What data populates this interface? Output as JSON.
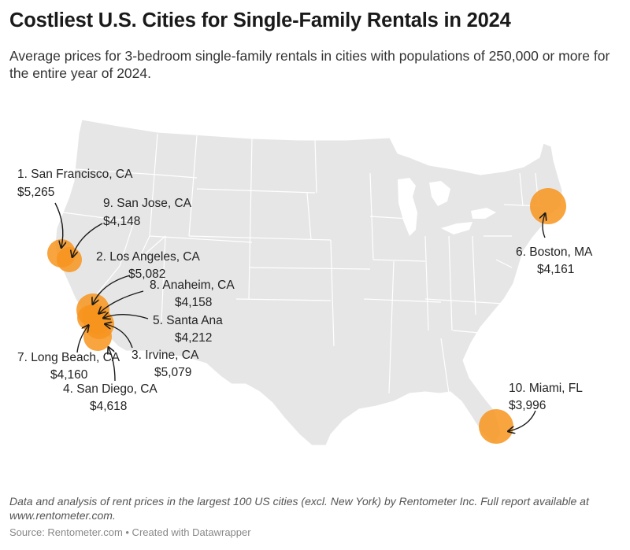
{
  "header": {
    "title": "Costliest U.S. Cities for Single-Family Rentals in 2024",
    "subtitle": "Average prices for 3-bedroom single-family rentals in cities with populations of 250,000 or more for the entire year of 2024."
  },
  "map": {
    "region": "Contiguous United States",
    "marker_color": "#f7941d",
    "land_color": "#e6e6e6",
    "border_color": "#ffffff",
    "cities": [
      {
        "rank": 1,
        "label": "1. San Francisco, CA",
        "price": "$5,265"
      },
      {
        "rank": 2,
        "label": "2. Los Angeles, CA",
        "price": "$5,082"
      },
      {
        "rank": 3,
        "label": "3. Irvine, CA",
        "price": "$5,079"
      },
      {
        "rank": 4,
        "label": "4. San Diego, CA",
        "price": "$4,618"
      },
      {
        "rank": 5,
        "label": "5. Santa Ana",
        "price": "$4,212"
      },
      {
        "rank": 6,
        "label": "6. Boston, MA",
        "price": "$4,161"
      },
      {
        "rank": 7,
        "label": "7. Long Beach, CA",
        "price": "$4,160"
      },
      {
        "rank": 8,
        "label": "8. Anaheim, CA",
        "price": "$4,158"
      },
      {
        "rank": 9,
        "label": "9. San Jose, CA",
        "price": "$4,148"
      },
      {
        "rank": 10,
        "label": "10. Miami, FL",
        "price": "$3,996"
      }
    ]
  },
  "footer": {
    "notes": "Data and analysis of rent prices in the largest 100 US cities (excl. New York) by Rentometer Inc. Full report available at www.rentometer.com.",
    "source": "Source: Rentometer.com • Created with Datawrapper"
  }
}
